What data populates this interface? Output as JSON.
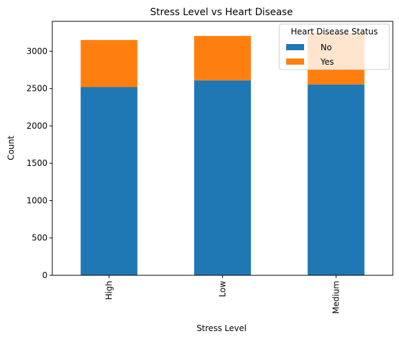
{
  "chart_data": {
    "type": "bar",
    "stacked": true,
    "title": "Stress Level vs Heart Disease",
    "xlabel": "Stress Level",
    "ylabel": "Count",
    "categories": [
      "High",
      "Low",
      "Medium"
    ],
    "series": [
      {
        "name": "No",
        "values": [
          2520,
          2610,
          2555
        ],
        "color": "#1f77b4"
      },
      {
        "name": "Yes",
        "values": [
          630,
          595,
          690
        ],
        "color": "#ff7f0e"
      }
    ],
    "ylim": [
      0,
      3400
    ],
    "yticks": [
      0,
      500,
      1000,
      1500,
      2000,
      2500,
      3000
    ],
    "legend": {
      "title": "Heart Disease Status",
      "position": "top-right"
    },
    "grid": false
  }
}
